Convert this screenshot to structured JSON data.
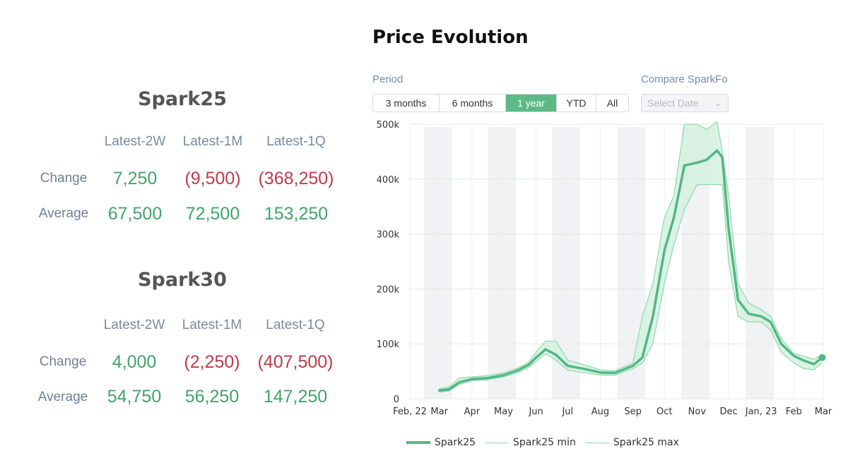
{
  "stats": [
    {
      "title": "Spark25",
      "columns": [
        "Latest-2W",
        "Latest-1M",
        "Latest-1Q"
      ],
      "rows": [
        {
          "label": "Change",
          "values": [
            "7,250",
            "(9,500)",
            "(368,250)"
          ],
          "negative": [
            false,
            true,
            true
          ]
        },
        {
          "label": "Average",
          "values": [
            "67,500",
            "72,500",
            "153,250"
          ],
          "negative": [
            false,
            false,
            false
          ]
        }
      ]
    },
    {
      "title": "Spark30",
      "columns": [
        "Latest-2W",
        "Latest-1M",
        "Latest-1Q"
      ],
      "rows": [
        {
          "label": "Change",
          "values": [
            "4,000",
            "(2,250)",
            "(407,500)"
          ],
          "negative": [
            false,
            true,
            true
          ]
        },
        {
          "label": "Average",
          "values": [
            "54,750",
            "56,250",
            "147,250"
          ],
          "negative": [
            false,
            false,
            false
          ]
        }
      ]
    }
  ],
  "chart_title": "Price Evolution",
  "controls": {
    "period_label": "Period",
    "periods": [
      "3 months",
      "6 months",
      "1 year",
      "YTD",
      "All"
    ],
    "active_period": "1 year",
    "compare_label": "Compare SparkFo",
    "compare_placeholder": "Select Date"
  },
  "colors": {
    "accent": "#5bba85",
    "line": "#52b784",
    "band_fill": "#d2f0df",
    "band_line": "#8fd8af",
    "positive": "#3fa46a",
    "negative": "#c0394b"
  },
  "chart_data": {
    "type": "line",
    "x_tick_labels": [
      "Feb, 22",
      "Mar",
      "Apr",
      "May",
      "Jun",
      "Jul",
      "Aug",
      "Sep",
      "Oct",
      "Nov",
      "Dec",
      "Jan, 23",
      "Feb",
      "Mar"
    ],
    "x_ticks": [
      "2022-02-01",
      "2022-03-01",
      "2022-04-01",
      "2022-05-01",
      "2022-06-01",
      "2022-07-01",
      "2022-08-01",
      "2022-09-01",
      "2022-10-01",
      "2022-11-01",
      "2022-12-01",
      "2023-01-01",
      "2023-02-01",
      "2023-03-01"
    ],
    "y_tick_labels": [
      "0",
      "100k",
      "200k",
      "300k",
      "400k",
      "500k"
    ],
    "ylim": [
      0,
      500000
    ],
    "grid": true,
    "legend": [
      "Spark25",
      "Spark25 min",
      "Spark25 max"
    ],
    "series": [
      {
        "name": "Spark25",
        "points": [
          [
            "2022-03-01",
            15000
          ],
          [
            "2022-03-10",
            17000
          ],
          [
            "2022-03-20",
            30000
          ],
          [
            "2022-04-01",
            36000
          ],
          [
            "2022-04-15",
            37500
          ],
          [
            "2022-05-01",
            43000
          ],
          [
            "2022-05-15",
            52000
          ],
          [
            "2022-05-25",
            62000
          ],
          [
            "2022-06-01",
            75000
          ],
          [
            "2022-06-10",
            90000
          ],
          [
            "2022-06-20",
            80000
          ],
          [
            "2022-07-01",
            60000
          ],
          [
            "2022-07-15",
            55000
          ],
          [
            "2022-08-01",
            48000
          ],
          [
            "2022-08-15",
            47000
          ],
          [
            "2022-09-01",
            60000
          ],
          [
            "2022-09-10",
            75000
          ],
          [
            "2022-09-20",
            150000
          ],
          [
            "2022-10-01",
            270000
          ],
          [
            "2022-10-10",
            330000
          ],
          [
            "2022-10-20",
            425000
          ],
          [
            "2022-11-01",
            430000
          ],
          [
            "2022-11-10",
            435000
          ],
          [
            "2022-11-20",
            452000
          ],
          [
            "2022-11-25",
            440000
          ],
          [
            "2022-12-01",
            310000
          ],
          [
            "2022-12-10",
            180000
          ],
          [
            "2022-12-20",
            155000
          ],
          [
            "2023-01-01",
            150000
          ],
          [
            "2023-01-10",
            140000
          ],
          [
            "2023-01-20",
            100000
          ],
          [
            "2023-02-01",
            78000
          ],
          [
            "2023-02-10",
            70000
          ],
          [
            "2023-02-20",
            63000
          ],
          [
            "2023-02-28",
            75000
          ]
        ]
      },
      {
        "name": "Spark25 min",
        "points": [
          [
            "2022-03-01",
            12000
          ],
          [
            "2022-03-10",
            14000
          ],
          [
            "2022-03-20",
            26000
          ],
          [
            "2022-04-01",
            33000
          ],
          [
            "2022-04-15",
            34000
          ],
          [
            "2022-05-01",
            40000
          ],
          [
            "2022-05-15",
            48000
          ],
          [
            "2022-05-25",
            57000
          ],
          [
            "2022-06-01",
            68000
          ],
          [
            "2022-06-10",
            82000
          ],
          [
            "2022-06-20",
            70000
          ],
          [
            "2022-07-01",
            52000
          ],
          [
            "2022-07-15",
            48000
          ],
          [
            "2022-08-01",
            43000
          ],
          [
            "2022-08-15",
            43000
          ],
          [
            "2022-09-01",
            55000
          ],
          [
            "2022-09-10",
            65000
          ],
          [
            "2022-09-20",
            100000
          ],
          [
            "2022-10-01",
            210000
          ],
          [
            "2022-10-10",
            280000
          ],
          [
            "2022-10-20",
            345000
          ],
          [
            "2022-11-01",
            390000
          ],
          [
            "2022-11-10",
            390000
          ],
          [
            "2022-11-20",
            390000
          ],
          [
            "2022-11-25",
            390000
          ],
          [
            "2022-12-01",
            250000
          ],
          [
            "2022-12-10",
            150000
          ],
          [
            "2022-12-20",
            140000
          ],
          [
            "2023-01-01",
            140000
          ],
          [
            "2023-01-10",
            125000
          ],
          [
            "2023-01-20",
            85000
          ],
          [
            "2023-02-01",
            65000
          ],
          [
            "2023-02-10",
            55000
          ],
          [
            "2023-02-20",
            53000
          ],
          [
            "2023-02-28",
            65000
          ]
        ]
      },
      {
        "name": "Spark25 max",
        "points": [
          [
            "2022-03-01",
            18000
          ],
          [
            "2022-03-10",
            21000
          ],
          [
            "2022-03-20",
            38000
          ],
          [
            "2022-04-01",
            40000
          ],
          [
            "2022-04-15",
            42000
          ],
          [
            "2022-05-01",
            47000
          ],
          [
            "2022-05-15",
            56000
          ],
          [
            "2022-05-25",
            67000
          ],
          [
            "2022-06-01",
            85000
          ],
          [
            "2022-06-10",
            105000
          ],
          [
            "2022-06-20",
            105000
          ],
          [
            "2022-07-01",
            70000
          ],
          [
            "2022-07-15",
            63000
          ],
          [
            "2022-08-01",
            53000
          ],
          [
            "2022-08-15",
            51000
          ],
          [
            "2022-09-01",
            65000
          ],
          [
            "2022-09-10",
            150000
          ],
          [
            "2022-09-20",
            210000
          ],
          [
            "2022-10-01",
            330000
          ],
          [
            "2022-10-10",
            370000
          ],
          [
            "2022-10-20",
            500000
          ],
          [
            "2022-11-01",
            500000
          ],
          [
            "2022-11-10",
            490000
          ],
          [
            "2022-11-20",
            505000
          ],
          [
            "2022-11-25",
            450000
          ],
          [
            "2022-12-01",
            370000
          ],
          [
            "2022-12-10",
            210000
          ],
          [
            "2022-12-20",
            175000
          ],
          [
            "2023-01-01",
            162000
          ],
          [
            "2023-01-10",
            150000
          ],
          [
            "2023-01-20",
            110000
          ],
          [
            "2023-02-01",
            82000
          ],
          [
            "2023-02-10",
            78000
          ],
          [
            "2023-02-20",
            72000
          ],
          [
            "2023-02-28",
            80000
          ]
        ]
      }
    ]
  }
}
